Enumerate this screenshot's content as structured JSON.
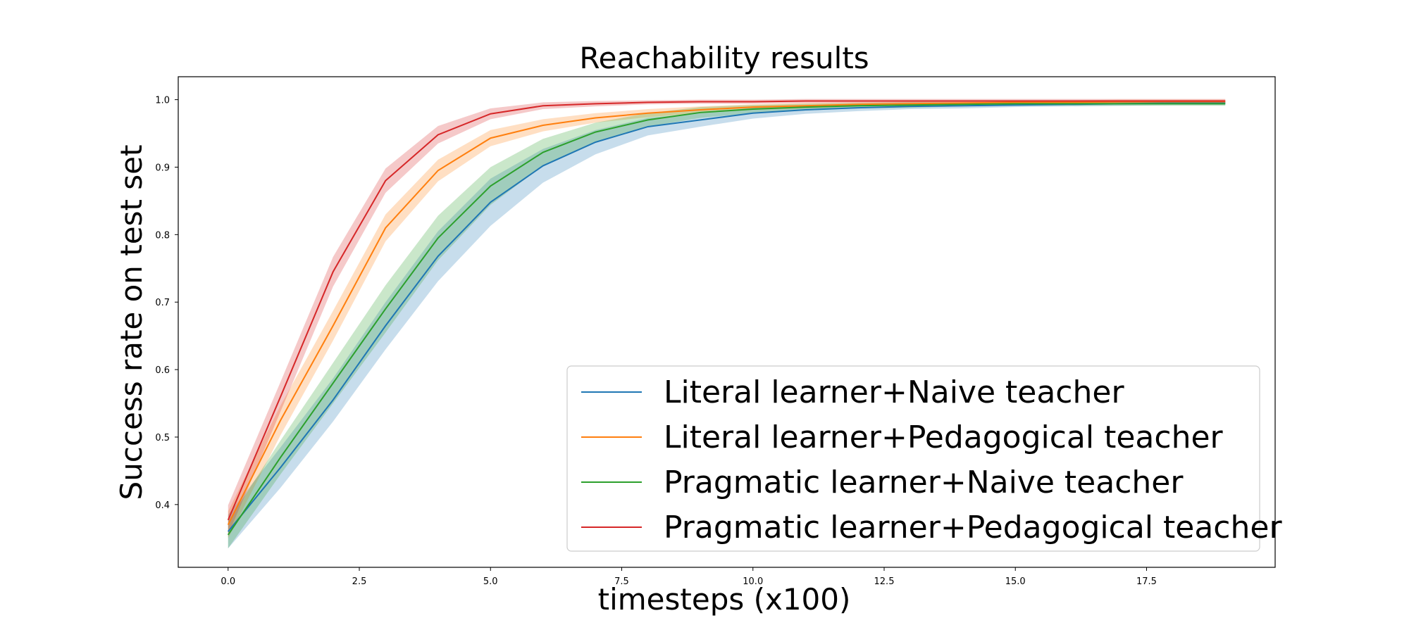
{
  "chart_data": {
    "type": "line",
    "title": "Reachability results",
    "xlabel": "timesteps (x100)",
    "ylabel": "Success rate on test set",
    "xlim": [
      -0.95,
      19.95
    ],
    "ylim": [
      0.307,
      1.034
    ],
    "xticks": [
      0.0,
      2.5,
      5.0,
      7.5,
      10.0,
      12.5,
      15.0,
      17.5
    ],
    "xtick_labels": [
      "0.0",
      "2.5",
      "5.0",
      "7.5",
      "10.0",
      "12.5",
      "15.0",
      "17.5"
    ],
    "yticks": [
      0.4,
      0.5,
      0.6,
      0.7,
      0.8,
      0.9,
      1.0
    ],
    "ytick_labels": [
      "0.4",
      "0.5",
      "0.6",
      "0.7",
      "0.8",
      "0.9",
      "1.0"
    ],
    "grid": false,
    "legend_position": "bottom-right",
    "x": [
      0,
      1,
      2,
      3,
      4,
      5,
      6,
      7,
      8,
      9,
      10,
      11,
      12,
      13,
      14,
      15,
      16,
      17,
      18,
      19
    ],
    "series": [
      {
        "name": "Literal learner+Naive teacher",
        "color": "#1f77b4",
        "values": [
          0.36,
          0.455,
          0.555,
          0.665,
          0.768,
          0.848,
          0.902,
          0.937,
          0.96,
          0.97,
          0.98,
          0.985,
          0.988,
          0.99,
          0.991,
          0.992,
          0.993,
          0.994,
          0.995,
          0.995
        ],
        "band": [
          0.025,
          0.03,
          0.032,
          0.035,
          0.037,
          0.035,
          0.025,
          0.018,
          0.013,
          0.01,
          0.008,
          0.006,
          0.005,
          0.004,
          0.004,
          0.003,
          0.003,
          0.003,
          0.003,
          0.003
        ]
      },
      {
        "name": "Literal learner+Pedagogical teacher",
        "color": "#ff7f0e",
        "values": [
          0.37,
          0.525,
          0.665,
          0.81,
          0.895,
          0.943,
          0.962,
          0.973,
          0.98,
          0.985,
          0.989,
          0.991,
          0.993,
          0.994,
          0.995,
          0.996,
          0.996,
          0.997,
          0.997,
          0.997
        ],
        "band": [
          0.02,
          0.022,
          0.022,
          0.02,
          0.016,
          0.012,
          0.009,
          0.007,
          0.006,
          0.005,
          0.004,
          0.004,
          0.003,
          0.003,
          0.003,
          0.003,
          0.003,
          0.003,
          0.003,
          0.003
        ]
      },
      {
        "name": "Pragmatic learner+Naive teacher",
        "color": "#2ca02c",
        "values": [
          0.355,
          0.47,
          0.58,
          0.69,
          0.795,
          0.872,
          0.922,
          0.952,
          0.97,
          0.981,
          0.986,
          0.989,
          0.991,
          0.992,
          0.993,
          0.994,
          0.994,
          0.994,
          0.994,
          0.994
        ],
        "band": [
          0.02,
          0.025,
          0.03,
          0.035,
          0.033,
          0.028,
          0.02,
          0.014,
          0.01,
          0.008,
          0.006,
          0.005,
          0.004,
          0.004,
          0.003,
          0.003,
          0.003,
          0.003,
          0.003,
          0.003
        ]
      },
      {
        "name": "Pragmatic learner+Pedagogical teacher",
        "color": "#d62728",
        "values": [
          0.377,
          0.56,
          0.745,
          0.88,
          0.948,
          0.979,
          0.991,
          0.994,
          0.996,
          0.997,
          0.997,
          0.998,
          0.998,
          0.998,
          0.998,
          0.998,
          0.998,
          0.998,
          0.998,
          0.998
        ],
        "band": [
          0.022,
          0.022,
          0.022,
          0.018,
          0.013,
          0.008,
          0.005,
          0.004,
          0.003,
          0.003,
          0.003,
          0.003,
          0.003,
          0.003,
          0.003,
          0.003,
          0.003,
          0.003,
          0.003,
          0.003
        ]
      }
    ]
  }
}
